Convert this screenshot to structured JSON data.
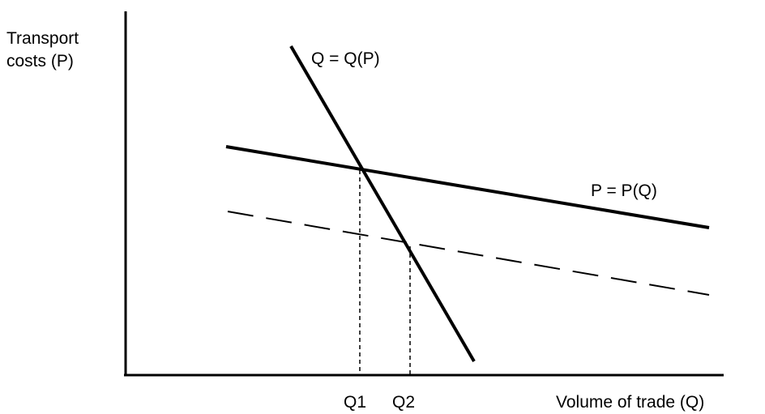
{
  "diagram": {
    "y_axis_label_line1": "Transport",
    "y_axis_label_line2": "costs (P)",
    "x_axis_label": "Volume of trade (Q)",
    "demand_curve_label": "Q = Q(P)",
    "supply_curve_label": "P = P(Q)",
    "q1_label": "Q1",
    "q2_label": "Q2"
  },
  "colors": {
    "ink": "#000000",
    "background": "#ffffff"
  }
}
